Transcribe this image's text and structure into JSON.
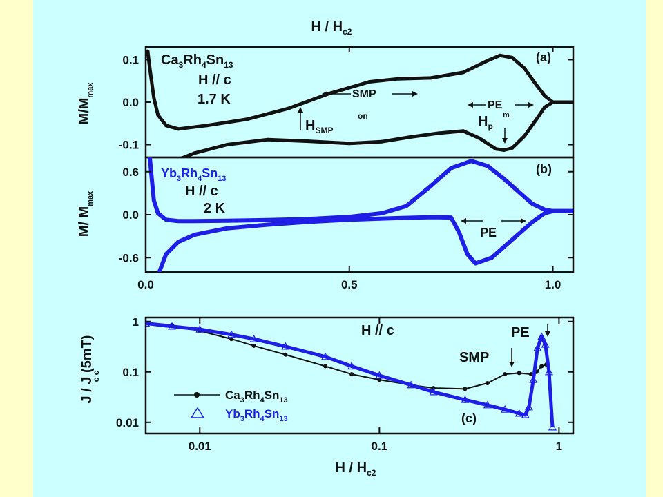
{
  "figure": {
    "top_axis_label": "H / H",
    "top_axis_sub": "c2",
    "bottom_axis_label": "H / H",
    "bottom_axis_sub": "c2"
  },
  "colors": {
    "black_series": "#111111",
    "blue_series": "#1e1ee6",
    "slide_bg": "#ccffff",
    "outer_bg": "#ffffcc"
  },
  "chart_data": [
    {
      "type": "line",
      "panel": "(a)",
      "ylabel": "M/M",
      "ylabel_sub": "max",
      "xlim": [
        0,
        1.05
      ],
      "ylim": [
        -0.13,
        0.13
      ],
      "yticks": [
        {
          "v": 0.1,
          "label": "0.1"
        },
        {
          "v": 0.0,
          "label": "0.0"
        },
        {
          "v": -0.1,
          "label": "-0.1"
        }
      ],
      "annotations": {
        "compound": {
          "parts": [
            "Ca",
            "3",
            "Rh",
            "4",
            "Sn",
            "13"
          ]
        },
        "field": "H // c",
        "temp": "1.7 K",
        "smp": "SMP",
        "pe": "PE",
        "hsmp": "H",
        "hsmp_sub": "SMP",
        "hsmp_sup": "on",
        "hp": "H",
        "hp_sub": "p",
        "hp_sup": "m"
      },
      "series": [
        {
          "segment": "decreasing-field",
          "color": "#111111",
          "x": [
            0.005,
            0.01,
            0.02,
            0.03,
            0.05,
            0.08,
            0.15,
            0.25,
            0.35,
            0.45,
            0.55,
            0.62,
            0.7,
            0.78,
            0.84,
            0.87,
            0.9,
            0.93,
            0.96,
            0.98,
            1.0,
            1.05
          ],
          "y": [
            0.12,
            0.08,
            0.01,
            -0.03,
            -0.055,
            -0.063,
            -0.055,
            -0.04,
            -0.015,
            0.02,
            0.048,
            0.055,
            0.057,
            0.07,
            0.098,
            0.11,
            0.105,
            0.08,
            0.04,
            0.015,
            0.0,
            0.0
          ]
        },
        {
          "segment": "increasing-field",
          "color": "#111111",
          "x": [
            0.08,
            0.12,
            0.2,
            0.3,
            0.4,
            0.5,
            0.58,
            0.65,
            0.72,
            0.78,
            0.82,
            0.86,
            0.88,
            0.9,
            0.93,
            0.96,
            0.98,
            1.0
          ],
          "y": [
            -0.135,
            -0.12,
            -0.1,
            -0.088,
            -0.092,
            -0.097,
            -0.093,
            -0.082,
            -0.073,
            -0.068,
            -0.085,
            -0.11,
            -0.113,
            -0.108,
            -0.08,
            -0.04,
            -0.012,
            0.0
          ]
        }
      ]
    },
    {
      "type": "line",
      "panel": "(b)",
      "ylabel": "M/ M",
      "ylabel_sub": "max",
      "xlim": [
        0,
        1.05
      ],
      "ylim": [
        -0.8,
        0.8
      ],
      "yticks": [
        {
          "v": 0.6,
          "label": "0.6"
        },
        {
          "v": 0.0,
          "label": "0.0"
        },
        {
          "v": -0.6,
          "label": "-0.6"
        }
      ],
      "xticks": [
        {
          "v": 0.0,
          "label": "0.0"
        },
        {
          "v": 0.5,
          "label": "0.5"
        },
        {
          "v": 1.0,
          "label": "1.0"
        }
      ],
      "annotations": {
        "compound": {
          "parts": [
            "Yb",
            "3",
            "Rh",
            "4",
            "Sn",
            "13"
          ]
        },
        "field": "H // c",
        "temp": "2 K",
        "pe": "PE"
      },
      "series": [
        {
          "segment": "decreasing-field",
          "color": "#1e1ee6",
          "x": [
            0.01,
            0.015,
            0.02,
            0.03,
            0.05,
            0.08,
            0.12,
            0.2,
            0.3,
            0.4,
            0.5,
            0.58,
            0.64,
            0.7,
            0.75,
            0.8,
            0.84,
            0.88,
            0.92,
            0.95,
            0.98,
            1.0,
            1.05
          ],
          "y": [
            0.8,
            0.5,
            0.2,
            0.02,
            -0.07,
            -0.09,
            -0.09,
            -0.085,
            -0.075,
            -0.06,
            -0.03,
            0.02,
            0.12,
            0.4,
            0.65,
            0.75,
            0.68,
            0.5,
            0.3,
            0.15,
            0.07,
            0.05,
            0.05
          ]
        },
        {
          "segment": "increasing-field",
          "color": "#1e1ee6",
          "x": [
            0.03,
            0.05,
            0.08,
            0.12,
            0.2,
            0.3,
            0.4,
            0.5,
            0.6,
            0.7,
            0.75,
            0.77,
            0.79,
            0.81,
            0.85,
            0.9,
            0.95,
            0.98,
            1.0,
            1.05
          ],
          "y": [
            -0.85,
            -0.55,
            -0.38,
            -0.28,
            -0.19,
            -0.14,
            -0.1,
            -0.07,
            -0.05,
            -0.035,
            -0.04,
            -0.25,
            -0.55,
            -0.68,
            -0.6,
            -0.35,
            -0.1,
            0.02,
            0.05,
            0.05
          ]
        }
      ]
    },
    {
      "type": "scatter",
      "panel": "(c)",
      "xlabel": "H / H",
      "xlabel_sub": "c2",
      "ylabel": "J / J (5mT)",
      "ylabel_sub": "c c",
      "xscale": "log",
      "yscale": "log",
      "xlim": [
        0.005,
        1.2
      ],
      "ylim": [
        0.006,
        1.2
      ],
      "xticks": [
        {
          "v": 0.01,
          "label": "0.01"
        },
        {
          "v": 0.1,
          "label": "0.1"
        },
        {
          "v": 1,
          "label": "1"
        }
      ],
      "yticks": [
        {
          "v": 1,
          "label": "1"
        },
        {
          "v": 0.1,
          "label": "0.1"
        },
        {
          "v": 0.01,
          "label": "0.01"
        }
      ],
      "annotations": {
        "field": "H // c",
        "pe": "PE",
        "smp": "SMP"
      },
      "legend": {
        "placement": "bottom-left",
        "entries": [
          {
            "parts": [
              "Ca",
              "3",
              "Rh",
              "4",
              "Sn",
              "13"
            ],
            "marker": "line-dot",
            "color": "#111111"
          },
          {
            "parts": [
              "Yb",
              "3",
              "Rh",
              "4",
              "Sn",
              "13"
            ],
            "marker": "triangle",
            "color": "#1e1ee6"
          }
        ]
      },
      "series": [
        {
          "marker": "dot",
          "color": "#111111",
          "x": [
            0.005,
            0.007,
            0.01,
            0.015,
            0.02,
            0.03,
            0.05,
            0.07,
            0.1,
            0.15,
            0.2,
            0.3,
            0.4,
            0.5,
            0.6,
            0.7,
            0.75,
            0.8,
            0.85
          ],
          "y": [
            0.95,
            0.85,
            0.65,
            0.45,
            0.33,
            0.22,
            0.13,
            0.09,
            0.07,
            0.055,
            0.048,
            0.046,
            0.06,
            0.09,
            0.095,
            0.09,
            0.1,
            0.13,
            0.14
          ]
        },
        {
          "marker": "triangle",
          "color": "#1e1ee6",
          "x": [
            0.005,
            0.007,
            0.01,
            0.015,
            0.02,
            0.03,
            0.05,
            0.07,
            0.1,
            0.15,
            0.2,
            0.3,
            0.4,
            0.5,
            0.6,
            0.65,
            0.68,
            0.72,
            0.76,
            0.8,
            0.84,
            0.88,
            0.92
          ],
          "y": [
            0.92,
            0.8,
            0.7,
            0.55,
            0.45,
            0.32,
            0.2,
            0.13,
            0.085,
            0.055,
            0.04,
            0.028,
            0.022,
            0.018,
            0.015,
            0.014,
            0.02,
            0.07,
            0.3,
            0.5,
            0.35,
            0.1,
            0.008
          ]
        }
      ]
    }
  ]
}
